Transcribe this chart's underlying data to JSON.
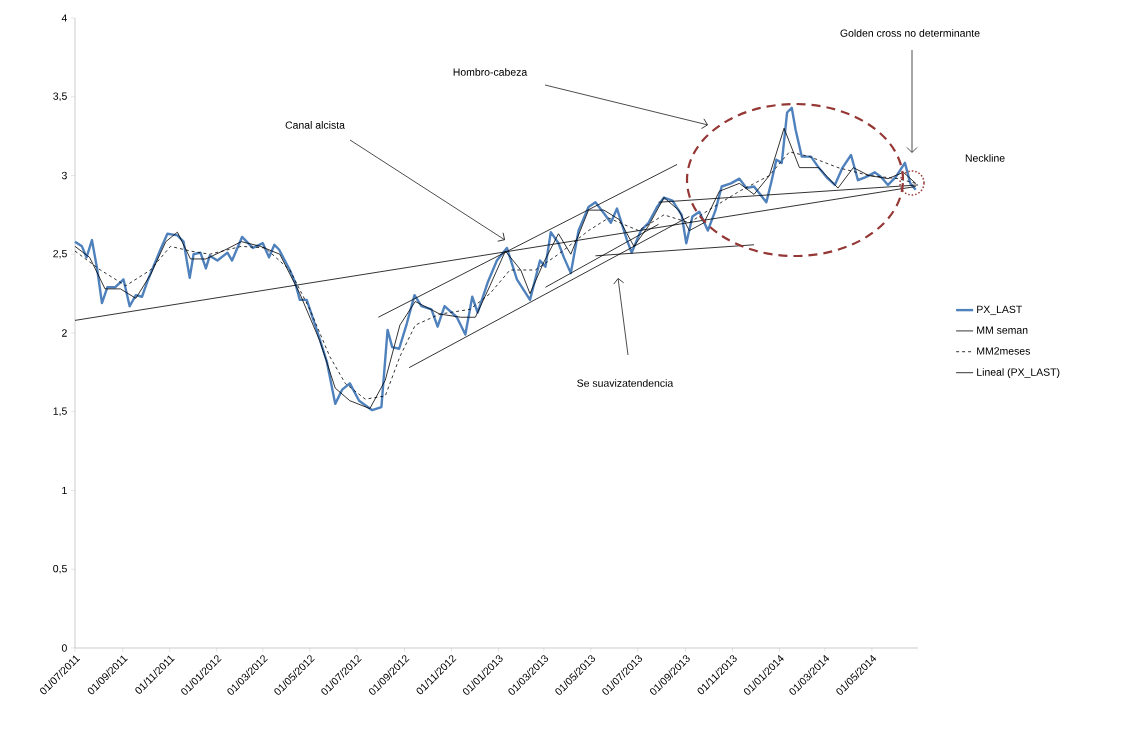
{
  "chart_data": {
    "type": "line",
    "xlim": [
      "2011-07-01",
      "2014-06-30"
    ],
    "ylim": [
      0,
      4
    ],
    "xticks": [
      {
        "value": "2011-07-01",
        "label": "01/07/2011"
      },
      {
        "value": "2011-09-01",
        "label": "01/09/2011"
      },
      {
        "value": "2011-11-01",
        "label": "01/11/2011"
      },
      {
        "value": "2012-01-01",
        "label": "01/01/2012"
      },
      {
        "value": "2012-03-01",
        "label": "01/03/2012"
      },
      {
        "value": "2012-05-01",
        "label": "01/05/2012"
      },
      {
        "value": "2012-07-01",
        "label": "01/07/2012"
      },
      {
        "value": "2012-09-01",
        "label": "01/09/2012"
      },
      {
        "value": "2012-11-01",
        "label": "01/11/2012"
      },
      {
        "value": "2013-01-01",
        "label": "01/01/2013"
      },
      {
        "value": "2013-03-01",
        "label": "01/03/2013"
      },
      {
        "value": "2013-05-01",
        "label": "01/05/2013"
      },
      {
        "value": "2013-07-01",
        "label": "01/07/2013"
      },
      {
        "value": "2013-09-01",
        "label": "01/09/2013"
      },
      {
        "value": "2013-11-01",
        "label": "01/11/2013"
      },
      {
        "value": "2014-01-01",
        "label": "01/01/2014"
      },
      {
        "value": "2014-03-01",
        "label": "01/03/2014"
      },
      {
        "value": "2014-05-01",
        "label": "01/05/2014"
      }
    ],
    "yticks": [
      0,
      {
        "value": 0.5,
        "label": "0,5"
      },
      1,
      {
        "value": 1.5,
        "label": "1,5"
      },
      2,
      {
        "value": 2.5,
        "label": "2,5"
      },
      3,
      {
        "value": 3.5,
        "label": "3,5"
      },
      4
    ],
    "legend": "right",
    "series": [
      {
        "name": "PX_LAST",
        "color": "#4f81bd",
        "line_style": "solid",
        "x": [
          "2011-07-01",
          "2011-07-10",
          "2011-07-16",
          "2011-07-23",
          "2011-07-30",
          "2011-08-05",
          "2011-08-12",
          "2011-08-22",
          "2011-09-02",
          "2011-09-10",
          "2011-09-18",
          "2011-09-26",
          "2011-10-04",
          "2011-10-20",
          "2011-10-29",
          "2011-11-11",
          "2011-11-19",
          "2011-11-27",
          "2011-12-02",
          "2011-12-11",
          "2011-12-18",
          "2011-12-23",
          "2012-01-02",
          "2012-01-15",
          "2012-01-21",
          "2012-02-03",
          "2012-02-17",
          "2012-03-01",
          "2012-03-09",
          "2012-03-16",
          "2012-03-22",
          "2012-04-05",
          "2012-04-12",
          "2012-04-18",
          "2012-04-27",
          "2012-05-10",
          "2012-05-23",
          "2012-06-03",
          "2012-06-12",
          "2012-06-22",
          "2012-07-04",
          "2012-07-21",
          "2012-08-02",
          "2012-08-10",
          "2012-08-16",
          "2012-08-25",
          "2012-09-04",
          "2012-09-14",
          "2012-09-23",
          "2012-10-06",
          "2012-10-14",
          "2012-10-23",
          "2012-11-08",
          "2012-11-19",
          "2012-11-28",
          "2012-12-05",
          "2012-12-18",
          "2012-12-30",
          "2013-01-12",
          "2013-01-25",
          "2013-02-11",
          "2013-02-24",
          "2013-03-03",
          "2013-03-10",
          "2013-03-20",
          "2013-03-27",
          "2013-04-05",
          "2013-04-15",
          "2013-04-28",
          "2013-05-07",
          "2013-05-18",
          "2013-05-27",
          "2013-06-04",
          "2013-06-17",
          "2013-06-23",
          "2013-07-05",
          "2013-07-15",
          "2013-07-26",
          "2013-08-04",
          "2013-08-15",
          "2013-08-27",
          "2013-09-02",
          "2013-09-10",
          "2013-09-19",
          "2013-09-30",
          "2013-10-10",
          "2013-10-18",
          "2013-10-30",
          "2013-11-10",
          "2013-11-19",
          "2013-11-29",
          "2013-12-15",
          "2013-12-22",
          "2013-12-28",
          "2014-01-04",
          "2014-01-11",
          "2014-01-17",
          "2014-01-22",
          "2014-01-30",
          "2014-02-11",
          "2014-02-21",
          "2014-03-03",
          "2014-03-14",
          "2014-03-24",
          "2014-04-04",
          "2014-04-13",
          "2014-04-23",
          "2014-05-05",
          "2014-05-13",
          "2014-05-22",
          "2014-06-01",
          "2014-06-13",
          "2014-06-20",
          "2014-06-27"
        ],
        "values": [
          2.58,
          2.55,
          2.48,
          2.59,
          2.4,
          2.19,
          2.29,
          2.29,
          2.34,
          2.17,
          2.24,
          2.23,
          2.34,
          2.53,
          2.63,
          2.62,
          2.58,
          2.35,
          2.5,
          2.51,
          2.41,
          2.49,
          2.46,
          2.51,
          2.46,
          2.61,
          2.54,
          2.57,
          2.48,
          2.56,
          2.53,
          2.4,
          2.32,
          2.21,
          2.21,
          2.02,
          1.82,
          1.55,
          1.64,
          1.68,
          1.57,
          1.51,
          1.53,
          2.02,
          1.91,
          1.9,
          2.06,
          2.24,
          2.17,
          2.15,
          2.04,
          2.17,
          2.1,
          1.99,
          2.23,
          2.13,
          2.32,
          2.46,
          2.54,
          2.34,
          2.21,
          2.46,
          2.42,
          2.64,
          2.57,
          2.48,
          2.38,
          2.65,
          2.8,
          2.83,
          2.76,
          2.7,
          2.79,
          2.59,
          2.51,
          2.65,
          2.7,
          2.8,
          2.86,
          2.84,
          2.75,
          2.57,
          2.74,
          2.77,
          2.65,
          2.78,
          2.93,
          2.95,
          2.98,
          2.92,
          2.93,
          2.83,
          2.97,
          3.1,
          3.08,
          3.4,
          3.43,
          3.29,
          3.12,
          3.12,
          3.05,
          2.99,
          2.94,
          3.05,
          3.13,
          2.97,
          2.99,
          3.02,
          2.99,
          2.94,
          2.99,
          3.08,
          2.95,
          2.91
        ]
      },
      {
        "name": "MM seman",
        "color": "#000000",
        "line_style": "solid",
        "x": [
          "2011-07-01",
          "2011-07-20",
          "2011-08-09",
          "2011-08-29",
          "2011-09-18",
          "2011-10-07",
          "2011-10-27",
          "2011-11-11",
          "2011-11-28",
          "2011-12-18",
          "2012-01-13",
          "2012-02-02",
          "2012-02-27",
          "2012-03-23",
          "2012-04-18",
          "2012-05-14",
          "2012-06-03",
          "2012-06-22",
          "2012-07-18",
          "2012-08-07",
          "2012-08-26",
          "2012-09-15",
          "2012-10-17",
          "2012-11-13",
          "2012-12-02",
          "2012-12-21",
          "2013-01-10",
          "2013-01-30",
          "2013-02-11",
          "2013-03-01",
          "2013-03-20",
          "2013-04-05",
          "2013-04-28",
          "2013-05-18",
          "2013-06-07",
          "2013-06-26",
          "2013-07-15",
          "2013-08-04",
          "2013-08-23",
          "2013-09-06",
          "2013-09-25",
          "2013-10-15",
          "2013-11-10",
          "2013-11-29",
          "2013-12-19",
          "2014-01-07",
          "2014-01-27",
          "2014-02-21",
          "2014-03-18",
          "2014-04-07",
          "2014-04-27",
          "2014-05-22",
          "2014-06-11",
          "2014-06-27"
        ],
        "values": [
          2.55,
          2.48,
          2.28,
          2.28,
          2.22,
          2.37,
          2.58,
          2.64,
          2.47,
          2.47,
          2.53,
          2.58,
          2.55,
          2.5,
          2.25,
          1.95,
          1.65,
          1.57,
          1.52,
          1.7,
          2.05,
          2.2,
          2.12,
          2.1,
          2.1,
          2.3,
          2.52,
          2.4,
          2.25,
          2.45,
          2.63,
          2.5,
          2.78,
          2.78,
          2.72,
          2.55,
          2.68,
          2.86,
          2.78,
          2.65,
          2.7,
          2.9,
          2.95,
          2.88,
          3.0,
          3.3,
          3.05,
          3.05,
          2.92,
          3.05,
          3.0,
          2.98,
          3.02,
          2.95
        ]
      },
      {
        "name": "MM2meses",
        "color": "#000000",
        "line_style": "dashed",
        "x": [
          "2011-07-01",
          "2011-08-03",
          "2011-09-05",
          "2011-10-07",
          "2011-11-02",
          "2011-11-28",
          "2011-12-23",
          "2012-02-02",
          "2012-03-04",
          "2012-04-05",
          "2012-05-01",
          "2012-05-27",
          "2012-06-16",
          "2012-07-12",
          "2012-08-07",
          "2012-08-26",
          "2012-09-15",
          "2012-10-17",
          "2012-11-25",
          "2012-12-21",
          "2013-01-16",
          "2013-02-18",
          "2013-03-20",
          "2013-04-28",
          "2013-05-24",
          "2013-07-02",
          "2013-08-04",
          "2013-09-06",
          "2013-10-01",
          "2013-11-10",
          "2013-12-19",
          "2014-01-14",
          "2014-02-09",
          "2014-03-18",
          "2014-04-27",
          "2014-06-04",
          "2014-06-27"
        ],
        "values": [
          2.52,
          2.4,
          2.3,
          2.4,
          2.55,
          2.52,
          2.5,
          2.55,
          2.54,
          2.4,
          2.15,
          1.85,
          1.68,
          1.58,
          1.6,
          1.85,
          2.05,
          2.12,
          2.15,
          2.25,
          2.4,
          2.4,
          2.5,
          2.65,
          2.73,
          2.65,
          2.75,
          2.7,
          2.78,
          2.9,
          3.0,
          3.15,
          3.12,
          3.05,
          3.0,
          2.98,
          2.95
        ]
      },
      {
        "name": "Lineal (PX_LAST)",
        "color": "#000000",
        "line_style": "solid",
        "x": [
          "2011-07-01",
          "2014-06-27"
        ],
        "values": [
          2.08,
          2.93
        ]
      },
      {
        "color": "#000000",
        "line_style": "solid",
        "x": [
          "2012-07-29",
          "2013-08-21"
        ],
        "values": [
          2.1,
          3.07
        ]
      },
      {
        "color": "#000000",
        "line_style": "solid",
        "x": [
          "2012-09-07",
          "2013-09-06"
        ],
        "values": [
          1.78,
          2.74
        ]
      },
      {
        "color": "#000000",
        "line_style": "solid",
        "x": [
          "2013-03-03",
          "2013-07-28"
        ],
        "values": [
          2.29,
          2.69
        ]
      },
      {
        "color": "#000000",
        "line_style": "solid",
        "x": [
          "2013-05-07",
          "2013-11-29"
        ],
        "values": [
          2.49,
          2.56
        ]
      },
      {
        "color": "#000000",
        "line_style": "solid",
        "x": [
          "2013-07-28",
          "2014-06-30"
        ],
        "values": [
          2.83,
          2.94
        ]
      }
    ],
    "annotations": [
      "Canal alcista",
      "Hombro-cabeza",
      "Se suavizatendencia",
      "Golden cross no determinante",
      "Neckline"
    ]
  }
}
